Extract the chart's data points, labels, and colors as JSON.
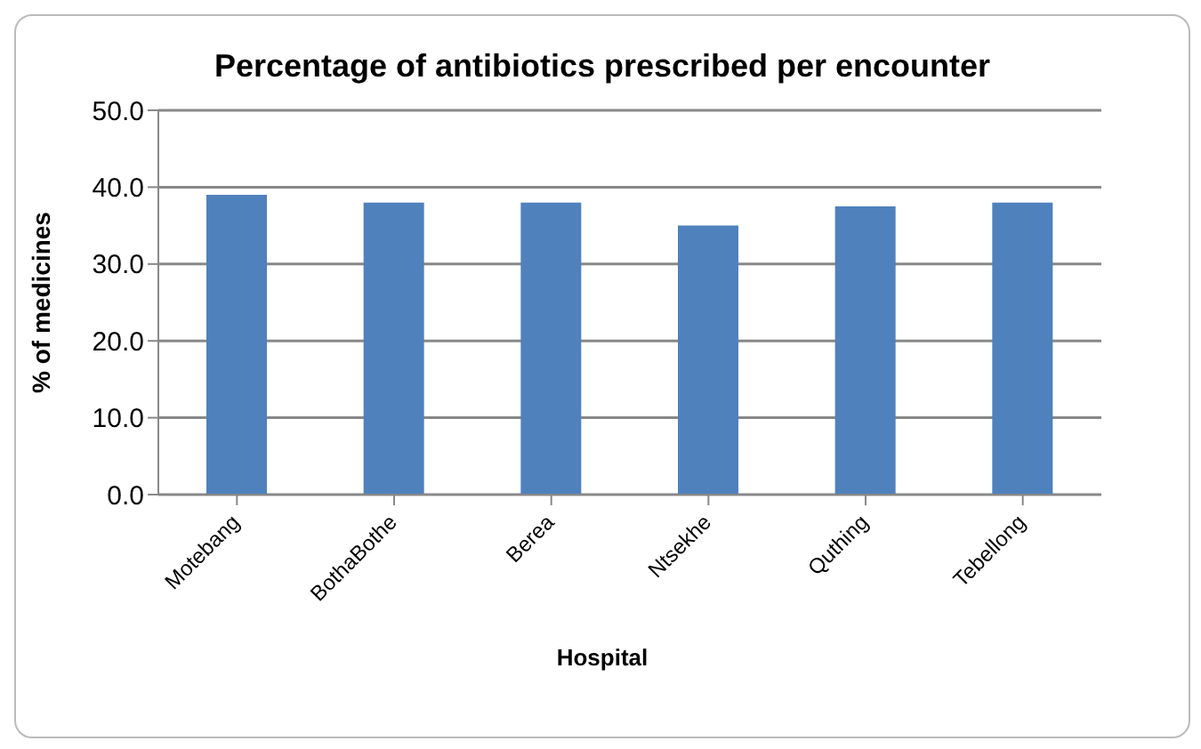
{
  "chart_data": {
    "type": "bar",
    "title": "Percentage of antibiotics prescribed per encounter",
    "xlabel": "Hospital",
    "ylabel": "% of medicines",
    "categories": [
      "Motebang",
      "BothaBothe",
      "Berea",
      "Ntsekhe",
      "Quthing",
      "Tebellong"
    ],
    "values": [
      39,
      38,
      38,
      35,
      37.5,
      38
    ],
    "color": "#4f81bd",
    "ylim": [
      0,
      50
    ],
    "yticks": [
      {
        "value": 0,
        "label": "0.0"
      },
      {
        "value": 10,
        "label": "10.0"
      },
      {
        "value": 20,
        "label": "20.0"
      },
      {
        "value": 30,
        "label": "30.0"
      },
      {
        "value": 40,
        "label": "40.0"
      },
      {
        "value": 50,
        "label": "50.0"
      }
    ],
    "grid": "y"
  }
}
